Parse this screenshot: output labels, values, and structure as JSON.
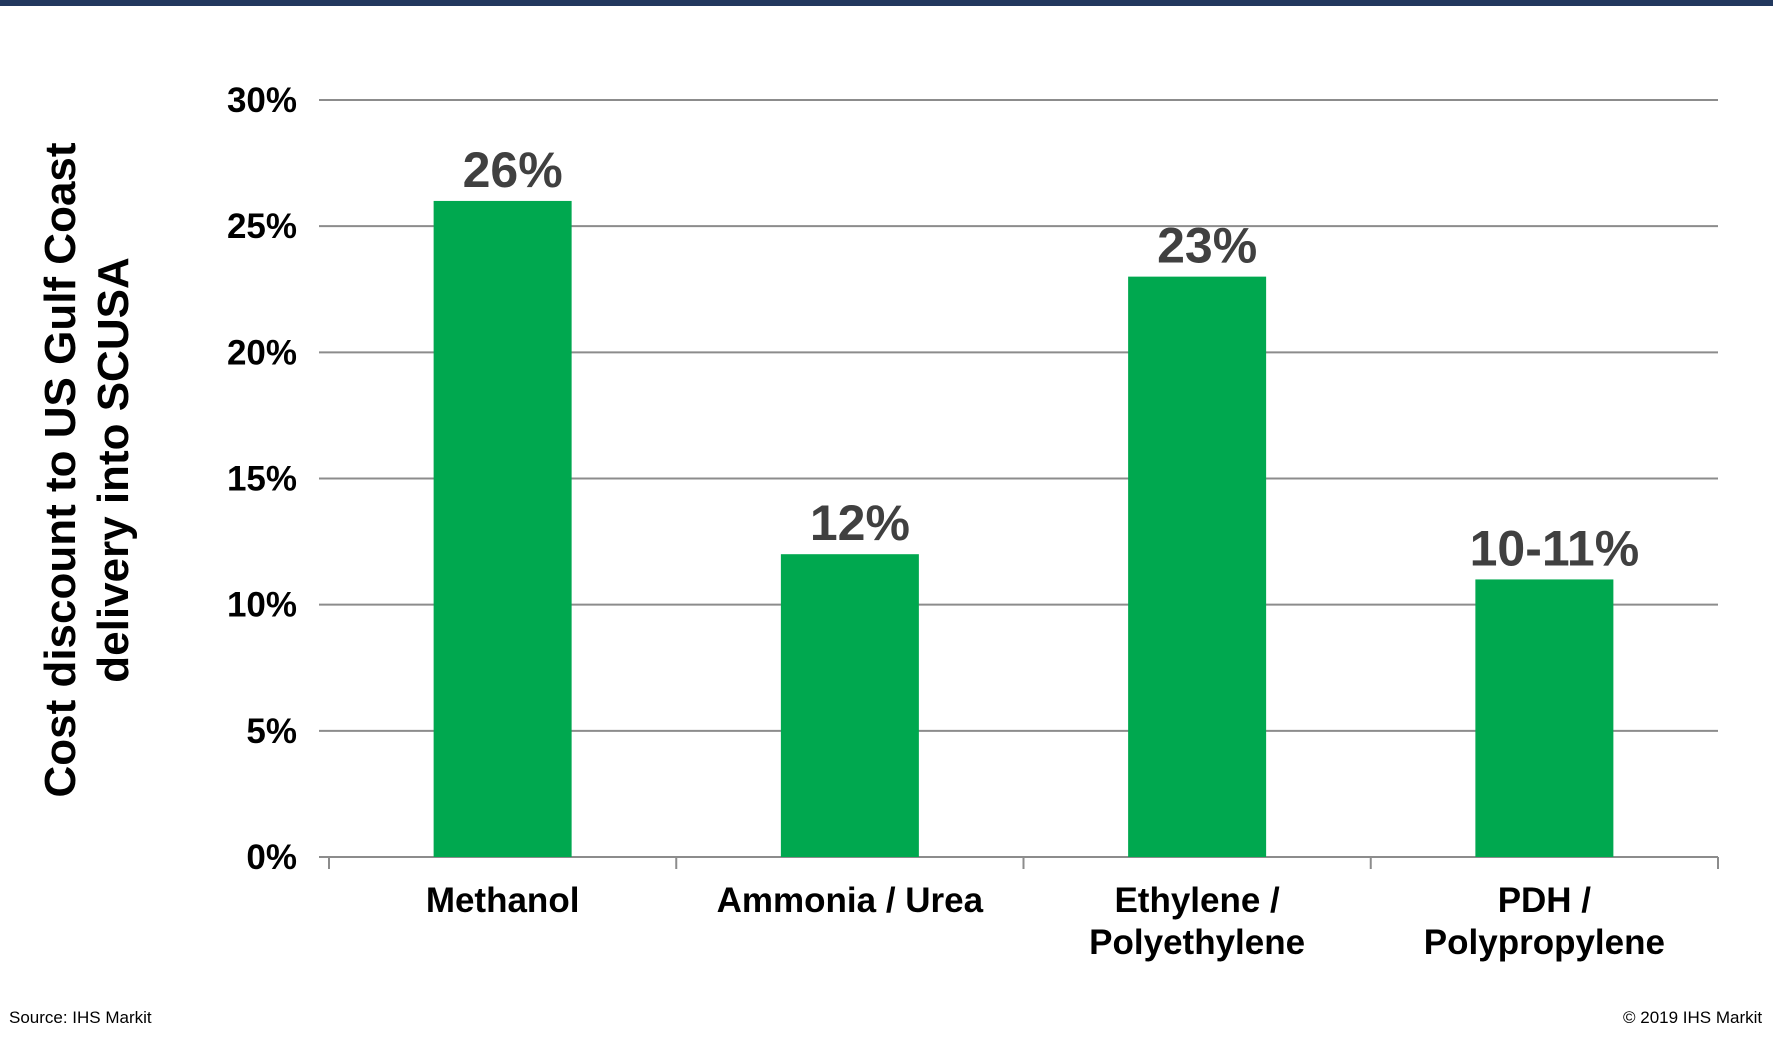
{
  "chart_data": {
    "type": "bar",
    "categories": [
      [
        "Methanol"
      ],
      [
        "Ammonia / Urea"
      ],
      [
        "Ethylene /",
        "Polyethylene"
      ],
      [
        "PDH /",
        "Polypropylene"
      ]
    ],
    "values": [
      26,
      12,
      23,
      11
    ],
    "data_labels": [
      "26%",
      "12%",
      "23%",
      "10-11%"
    ],
    "ylabel": [
      "Cost discount to US Gulf Coast",
      "delivery into SCUSA"
    ],
    "ylim": [
      0,
      30
    ],
    "yticks": [
      0,
      5,
      10,
      15,
      20,
      25,
      30
    ],
    "ytick_labels": [
      "0%",
      "5%",
      "10%",
      "15%",
      "20%",
      "25%",
      "30%"
    ],
    "grid": true,
    "bar_color": "#00a84f",
    "grid_color": "#8c8c8c"
  },
  "footer": {
    "source": "Source: IHS Markit",
    "copyright": "© 2019 IHS Markit"
  },
  "colors": {
    "top_bar": "#22385e",
    "data_label": "#404040"
  }
}
